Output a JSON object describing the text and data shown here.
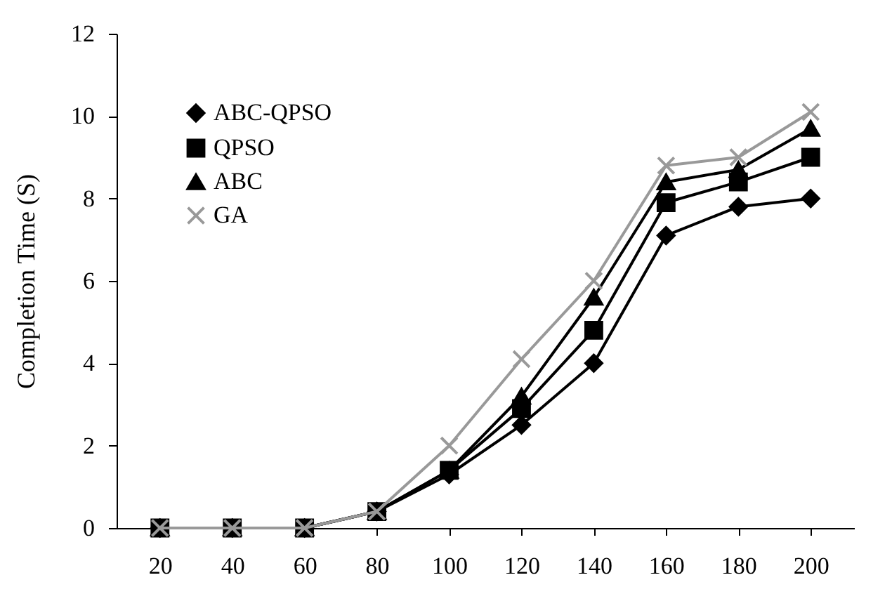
{
  "chart_data": {
    "type": "line",
    "ylabel": "Completion Time (S)",
    "categories": [
      "20",
      "40",
      "60",
      "80",
      "100",
      "120",
      "140",
      "160",
      "180",
      "200"
    ],
    "ylim": [
      0,
      12
    ],
    "yticks": [
      0,
      2,
      4,
      6,
      8,
      10,
      12
    ],
    "grid": false,
    "legend": "top left",
    "series": [
      {
        "name": "ABC-QPSO",
        "color": "#000000",
        "marker": "diamond",
        "values": [
          0,
          0,
          0,
          0.4,
          1.3,
          2.5,
          4.0,
          7.1,
          7.8,
          8.0
        ]
      },
      {
        "name": "QPSO",
        "color": "#000000",
        "marker": "square",
        "values": [
          0,
          0,
          0,
          0.4,
          1.4,
          2.9,
          4.8,
          7.9,
          8.4,
          9.0
        ]
      },
      {
        "name": "ABC",
        "color": "#000000",
        "marker": "triangle",
        "values": [
          0,
          0,
          0,
          0.4,
          1.4,
          3.2,
          5.6,
          8.4,
          8.7,
          9.7
        ]
      },
      {
        "name": "GA",
        "color": "#999999",
        "marker": "cross",
        "values": [
          0,
          0,
          0,
          0.4,
          2.0,
          4.1,
          6.0,
          8.8,
          9.0,
          10.1
        ]
      }
    ]
  }
}
